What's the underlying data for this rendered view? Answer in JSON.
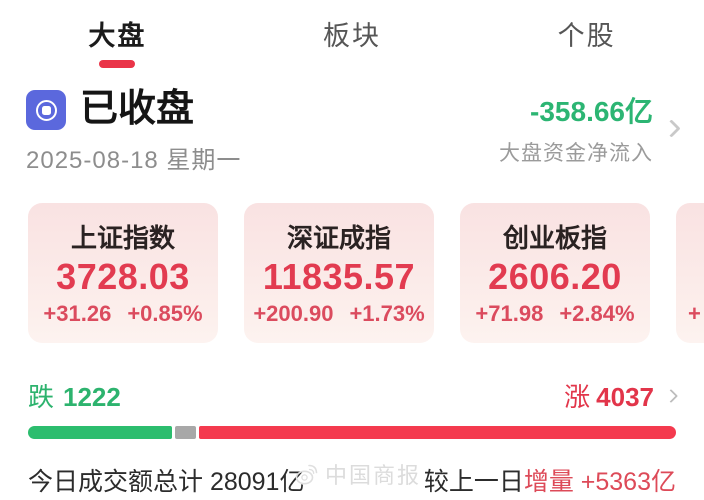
{
  "tabs": [
    {
      "label": "大盘",
      "active": true
    },
    {
      "label": "板块",
      "active": false
    },
    {
      "label": "个股",
      "active": false
    }
  ],
  "status": {
    "label": "已收盘",
    "date": "2025-08-18 星期一"
  },
  "net_inflow": {
    "value": "-358.66亿",
    "label": "大盘资金净流入"
  },
  "indices": [
    {
      "name": "上证指数",
      "value": "3728.03",
      "change": "+31.26",
      "change_pct": "+0.85%"
    },
    {
      "name": "深证成指",
      "value": "11835.57",
      "change": "+200.90",
      "change_pct": "+1.73%"
    },
    {
      "name": "创业板指",
      "value": "2606.20",
      "change": "+71.98",
      "change_pct": "+2.84%"
    },
    {
      "name": "",
      "value": "",
      "change": "+",
      "change_pct": ""
    }
  ],
  "breadth": {
    "down_label": "跌",
    "down_count": "1222",
    "up_label": "涨",
    "up_count": "4037",
    "down_width_pct": 22.5,
    "flat_width_pct": 3.2,
    "up_width_pct": 74.3
  },
  "turnover": {
    "total_text": "今日成交额总计 28091亿",
    "compare_prefix": "较上一日",
    "compare_highlight": "增量 +5363亿"
  },
  "watermark": {
    "text": "中国商报"
  },
  "colors": {
    "accent_red": "#ea3448",
    "up_red": "#e23b50",
    "bar_up_red": "#f43a4e",
    "down_green": "#2db36e",
    "bar_down_green": "#2cbd6e",
    "bar_flat_gray": "#a8a8a8",
    "inflow_green": "#2cb573",
    "status_icon_indigo": "#5b68dd",
    "highlight_red": "#dd4a58"
  }
}
